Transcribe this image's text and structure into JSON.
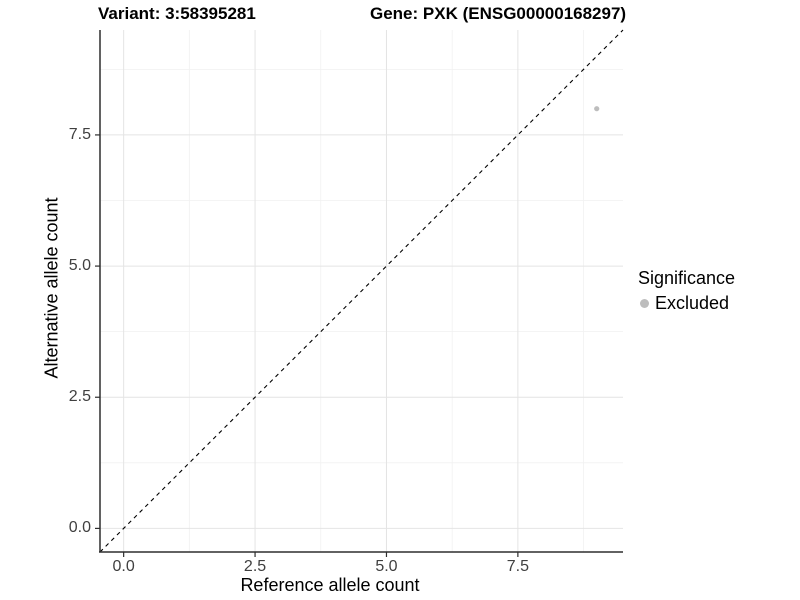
{
  "header": {
    "title_left": "Variant: 3:58395281",
    "title_right": "Gene: PXK (ENSG00000168297)"
  },
  "chart_data": {
    "type": "scatter",
    "xlabel": "Reference allele count",
    "ylabel": "Alternative allele count",
    "xlim": [
      -0.45,
      9.5
    ],
    "ylim": [
      -0.45,
      9.5
    ],
    "x_tick_values": [
      0,
      2.5,
      5,
      7.5
    ],
    "x_tick_labels": [
      "0.0",
      "2.5",
      "5.0",
      "7.5"
    ],
    "y_tick_values": [
      0,
      2.5,
      5,
      7.5
    ],
    "y_tick_labels": [
      "0.0",
      "2.5",
      "5.0",
      "7.5"
    ],
    "minor_tick_values": [
      1.25,
      3.75,
      6.25,
      8.75
    ],
    "grid": true,
    "reference_line": {
      "type": "identity",
      "style": "dashed",
      "color": "#000000"
    },
    "series": [
      {
        "name": "Excluded",
        "color": "#bdbdbd",
        "points": [
          {
            "x": 9,
            "y": 8
          }
        ]
      }
    ],
    "legend": {
      "title": "Significance",
      "position": "right",
      "entries": [
        {
          "label": "Excluded",
          "color": "#bdbdbd"
        }
      ]
    }
  },
  "colors": {
    "grid_major": "#e4e4e4",
    "grid_minor": "#f1f1f1",
    "axis_line": "#2e2e2e",
    "tick_mark": "#2e2e2e"
  }
}
